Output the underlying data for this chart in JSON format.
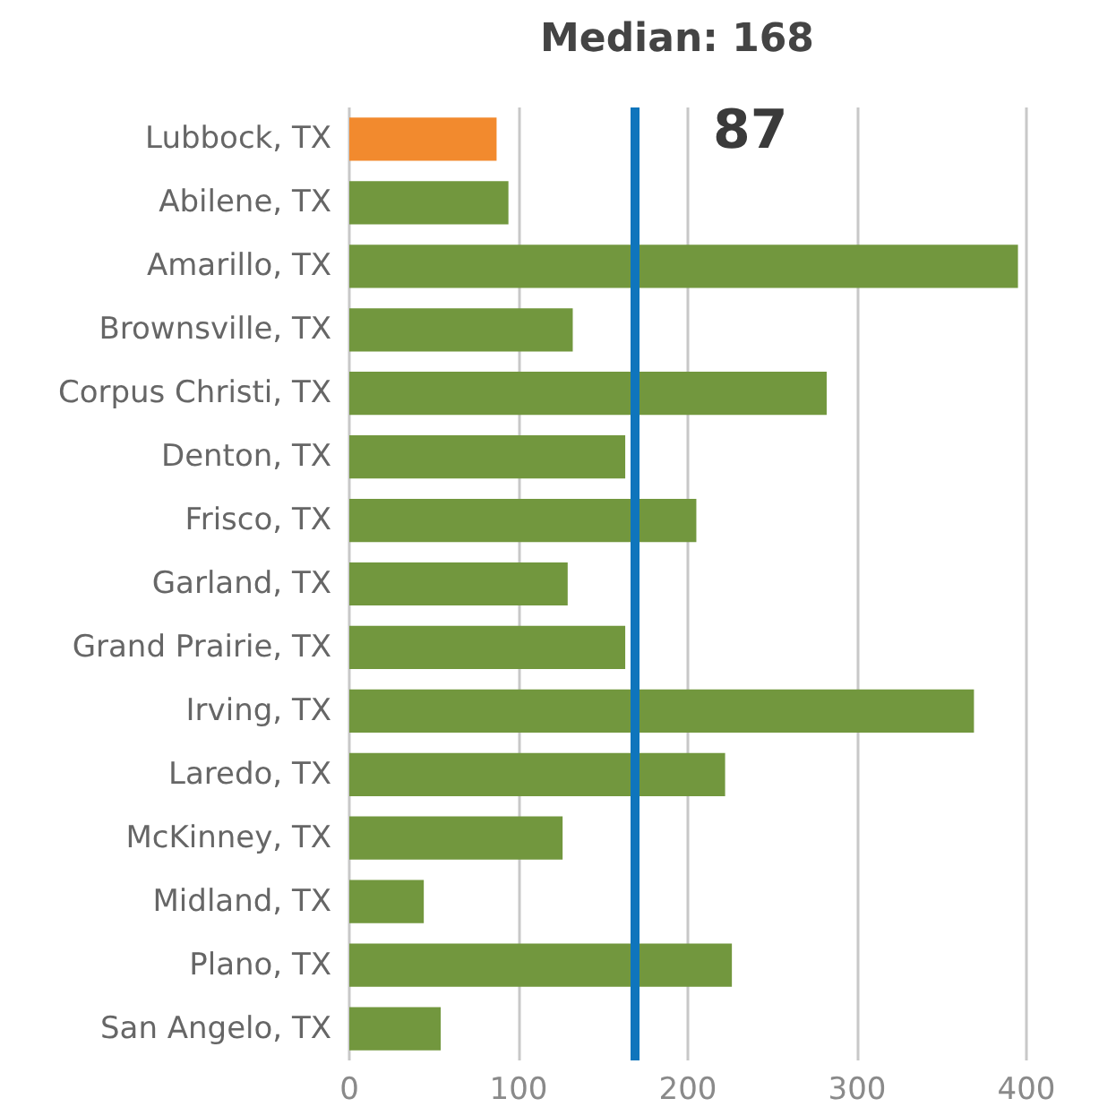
{
  "chart_data": {
    "type": "bar",
    "orientation": "horizontal",
    "title": "Median: 168",
    "categories": [
      "Lubbock, TX",
      "Abilene, TX",
      "Amarillo, TX",
      "Brownsville, TX",
      "Corpus Christi, TX",
      "Denton, TX",
      "Frisco, TX",
      "Garland, TX",
      "Grand Prairie, TX",
      "Irving, TX",
      "Laredo, TX",
      "McKinney, TX",
      "Midland, TX",
      "Plano, TX",
      "San Angelo, TX"
    ],
    "values": [
      87,
      94,
      395,
      132,
      282,
      163,
      205,
      129,
      163,
      369,
      222,
      126,
      44,
      226,
      54
    ],
    "colors": [
      "#f28a2e",
      "#72973e",
      "#72973e",
      "#72973e",
      "#72973e",
      "#72973e",
      "#72973e",
      "#72973e",
      "#72973e",
      "#72973e",
      "#72973e",
      "#72973e",
      "#72973e",
      "#72973e",
      "#72973e"
    ],
    "xlim": [
      0,
      400
    ],
    "xticks": [
      0,
      100,
      200,
      300,
      400
    ],
    "grid": "x",
    "ref_lines": [
      {
        "axis": "x",
        "value": 168,
        "color": "#0f75bc"
      }
    ],
    "annotations": [
      "87"
    ]
  }
}
